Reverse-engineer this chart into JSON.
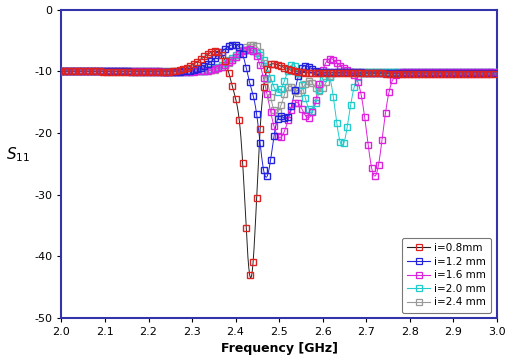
{
  "xlabel": "Frequency [GHz]",
  "ylabel": "$S_{11}$",
  "xlim": [
    2.0,
    3.0
  ],
  "ylim": [
    -50,
    0
  ],
  "yticks": [
    0,
    -10,
    -20,
    -30,
    -40,
    -50
  ],
  "xticks": [
    2.0,
    2.1,
    2.2,
    2.3,
    2.4,
    2.5,
    2.6,
    2.7,
    2.8,
    2.9,
    3.0
  ],
  "spine_color": "#3333aa",
  "background_color": "#ffffff",
  "series": [
    {
      "label": "i=0.8mm",
      "line_color": "#222222",
      "marker_color": "#dd2222",
      "zorder": 5
    },
    {
      "label": "i=1.2 mm",
      "line_color": "#2222dd",
      "marker_color": "#2222dd",
      "zorder": 4
    },
    {
      "label": "i=1.6 mm",
      "line_color": "#dd22dd",
      "marker_color": "#dd22dd",
      "zorder": 3
    },
    {
      "label": "i=2.0 mm",
      "line_color": "#22cccc",
      "marker_color": "#22cccc",
      "zorder": 2
    },
    {
      "label": "i=2.4 mm",
      "line_color": "#999999",
      "marker_color": "#999999",
      "zorder": 1
    }
  ]
}
